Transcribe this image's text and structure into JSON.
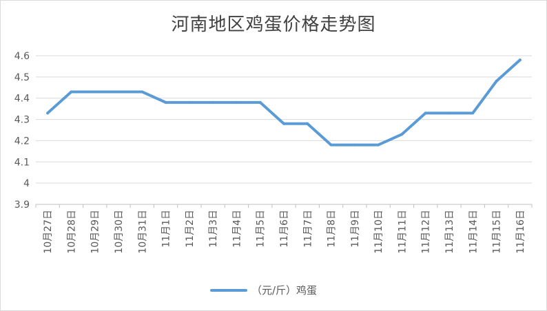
{
  "chart_data": {
    "type": "line",
    "title": "河南地区鸡蛋价格走势图",
    "categories": [
      "10月27日",
      "10月28日",
      "10月29日",
      "10月30日",
      "10月31日",
      "11月1日",
      "11月2日",
      "11月3日",
      "11月4日",
      "11月5日",
      "11月6日",
      "11月7日",
      "11月8日",
      "11月9日",
      "11月10日",
      "11月11日",
      "11月12日",
      "11月13日",
      "11月14日",
      "11月15日",
      "11月16日"
    ],
    "series": [
      {
        "name": "（元/斤）鸡蛋",
        "color": "#5b9bd5",
        "values": [
          4.33,
          4.43,
          4.43,
          4.43,
          4.43,
          4.38,
          4.38,
          4.38,
          4.38,
          4.38,
          4.28,
          4.28,
          4.18,
          4.18,
          4.18,
          4.23,
          4.33,
          4.33,
          4.33,
          4.48,
          4.58
        ]
      }
    ],
    "yticks": [
      "3.9",
      "4",
      "4.1",
      "4.2",
      "4.3",
      "4.4",
      "4.5",
      "4.6"
    ],
    "ylim": [
      3.9,
      4.6
    ],
    "grid": true,
    "legend": "bottom"
  }
}
